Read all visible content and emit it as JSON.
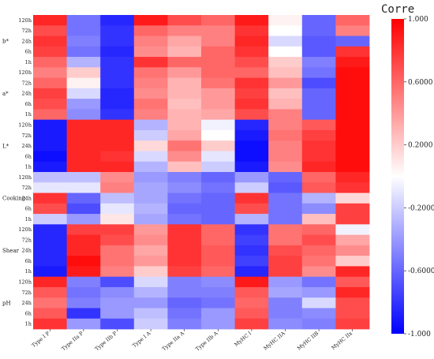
{
  "chart_data": {
    "type": "heatmap",
    "title": "",
    "columns": [
      "Type I P",
      "Type IIa P",
      "Type IIb P",
      "Type I A",
      "Type IIa A",
      "Type IIb A",
      "MyHC I",
      "MyHC IIA",
      "MyHC IIB",
      "MyHC IIx"
    ],
    "row_times": [
      "120h",
      "72h",
      "24h",
      "6h",
      "1h"
    ],
    "row_groups": [
      {
        "name": "b*"
      },
      {
        "name": "a*"
      },
      {
        "name": "L*"
      },
      {
        "name": "Cooking"
      },
      {
        "name": "Shear"
      },
      {
        "name": "pH"
      }
    ],
    "values": [
      [
        0.85,
        -0.55,
        -0.85,
        0.9,
        0.7,
        0.6,
        0.9,
        0.05,
        -0.6,
        0.6
      ],
      [
        0.7,
        -0.55,
        -0.8,
        0.6,
        0.5,
        0.5,
        0.8,
        0.0,
        -0.6,
        0.5
      ],
      [
        0.8,
        -0.5,
        -0.8,
        0.5,
        0.35,
        0.5,
        0.85,
        -0.15,
        -0.65,
        -0.6
      ],
      [
        0.75,
        -0.55,
        -0.85,
        0.45,
        0.3,
        0.6,
        0.8,
        0.0,
        -0.65,
        0.8
      ],
      [
        0.6,
        -0.3,
        -0.8,
        0.8,
        0.6,
        0.6,
        0.7,
        0.2,
        -0.5,
        0.9
      ],
      [
        0.5,
        0.2,
        -0.8,
        0.55,
        0.4,
        0.6,
        0.6,
        0.25,
        -0.55,
        0.95
      ],
      [
        0.6,
        0.05,
        -0.8,
        0.5,
        0.3,
        0.55,
        0.8,
        0.4,
        -0.7,
        0.95
      ],
      [
        0.75,
        -0.15,
        -0.85,
        0.45,
        0.3,
        0.4,
        0.75,
        0.25,
        -0.6,
        0.95
      ],
      [
        0.7,
        -0.4,
        -0.85,
        0.55,
        0.25,
        0.4,
        0.8,
        0.3,
        -0.6,
        0.95
      ],
      [
        0.6,
        -0.45,
        -0.8,
        0.5,
        0.3,
        0.35,
        0.7,
        0.5,
        -0.6,
        0.95
      ],
      [
        -0.9,
        0.85,
        0.85,
        -0.3,
        0.3,
        -0.05,
        -0.85,
        0.5,
        0.65,
        0.95
      ],
      [
        -0.9,
        0.85,
        0.85,
        -0.2,
        0.35,
        0.0,
        -0.9,
        0.55,
        0.75,
        0.95
      ],
      [
        -0.9,
        0.85,
        0.85,
        0.15,
        0.55,
        0.2,
        -0.95,
        0.5,
        0.8,
        0.95
      ],
      [
        -0.95,
        0.85,
        0.8,
        -0.15,
        0.45,
        -0.1,
        -0.95,
        0.5,
        0.8,
        0.95
      ],
      [
        -0.9,
        0.85,
        0.85,
        -0.3,
        0.25,
        -0.2,
        -0.9,
        0.45,
        0.85,
        0.95
      ],
      [
        -0.25,
        -0.25,
        0.45,
        -0.4,
        -0.5,
        -0.6,
        -0.4,
        -0.6,
        0.6,
        0.85
      ],
      [
        -0.1,
        -0.1,
        0.5,
        -0.35,
        -0.45,
        -0.55,
        -0.2,
        -0.65,
        0.65,
        0.8
      ],
      [
        0.8,
        -0.6,
        -0.25,
        -0.35,
        -0.55,
        -0.6,
        0.8,
        -0.55,
        -0.3,
        0.15
      ],
      [
        0.7,
        -0.7,
        -0.1,
        -0.3,
        -0.6,
        -0.6,
        0.7,
        -0.55,
        -0.45,
        0.75
      ],
      [
        -0.2,
        -0.4,
        0.1,
        -0.35,
        -0.55,
        -0.6,
        -0.3,
        -0.55,
        0.25,
        0.75
      ],
      [
        -0.85,
        0.75,
        0.75,
        0.4,
        0.8,
        0.6,
        -0.8,
        0.55,
        0.6,
        -0.05
      ],
      [
        -0.85,
        0.85,
        0.7,
        0.45,
        0.8,
        0.6,
        -0.75,
        0.55,
        0.7,
        0.35
      ],
      [
        -0.85,
        0.85,
        0.55,
        0.35,
        0.8,
        0.65,
        -0.8,
        0.7,
        0.6,
        0.45
      ],
      [
        -0.85,
        0.95,
        0.55,
        0.4,
        0.8,
        0.65,
        -0.75,
        0.75,
        0.55,
        0.2
      ],
      [
        -0.9,
        0.9,
        0.5,
        0.2,
        0.75,
        0.6,
        -0.85,
        0.75,
        0.45,
        0.85
      ],
      [
        0.85,
        -0.5,
        -0.7,
        -0.15,
        -0.5,
        -0.45,
        0.9,
        -0.4,
        -0.55,
        0.65
      ],
      [
        0.65,
        -0.55,
        -0.45,
        -0.3,
        -0.5,
        -0.5,
        0.65,
        -0.35,
        -0.4,
        0.85
      ],
      [
        0.55,
        -0.5,
        -0.4,
        -0.4,
        -0.6,
        -0.55,
        0.6,
        -0.5,
        -0.15,
        0.7
      ],
      [
        0.65,
        -0.8,
        -0.4,
        -0.25,
        -0.55,
        -0.4,
        0.65,
        -0.5,
        -0.45,
        0.7
      ],
      [
        0.8,
        -0.4,
        -0.7,
        -0.2,
        -0.5,
        -0.4,
        0.75,
        -0.45,
        -0.5,
        0.75
      ]
    ],
    "colorbar": {
      "title": "Corre",
      "min": -1,
      "max": 1,
      "ticks": [
        1.0,
        0.6,
        0.2,
        -0.2,
        -0.6,
        -1.0
      ],
      "tick_labels": [
        "1.000",
        "0.6000",
        "0.2000",
        "-0.2000",
        "-0.6000",
        "-1.000"
      ],
      "colors": {
        "low": "#0000ff",
        "mid": "#ffffff",
        "high": "#ff0000"
      }
    }
  }
}
